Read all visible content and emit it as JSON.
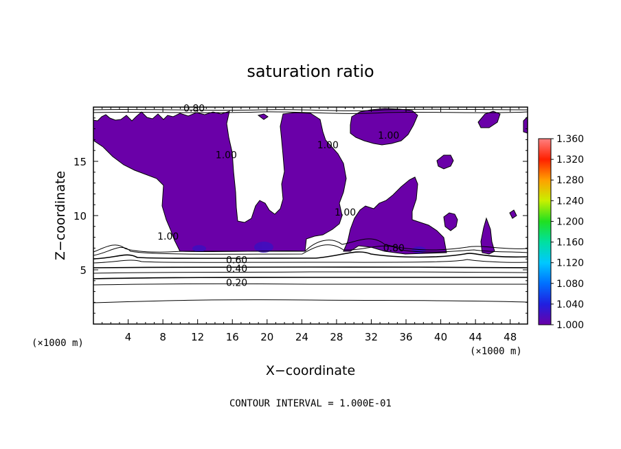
{
  "chart_data": {
    "type": "heatmap",
    "title": "saturation ratio",
    "xlabel": "X−coordinate",
    "ylabel": "Z−coordinate",
    "x_unit_left": "(×1000 m)",
    "x_unit_right": "(×1000 m)",
    "xlim": [
      0,
      50
    ],
    "ylim": [
      0,
      20
    ],
    "x_ticks": [
      4,
      8,
      12,
      16,
      20,
      24,
      28,
      32,
      36,
      40,
      44,
      48
    ],
    "y_ticks": [
      5,
      10,
      15
    ],
    "x_tick_labels": [
      "4",
      "8",
      "12",
      "16",
      "20",
      "24",
      "28",
      "32",
      "36",
      "40",
      "44",
      "48"
    ],
    "y_tick_labels": [
      "5",
      "10",
      "15"
    ],
    "note": "CONTOUR INTERVAL = 1.000E-01",
    "colorbar": {
      "min": 1.0,
      "max": 1.36,
      "tick_values": [
        1.0,
        1.04,
        1.08,
        1.12,
        1.16,
        1.2,
        1.24,
        1.28,
        1.32,
        1.36
      ],
      "labels": [
        "1.000",
        "1.040",
        "1.080",
        "1.120",
        "1.160",
        "1.200",
        "1.240",
        "1.280",
        "1.320",
        "1.360"
      ],
      "colors": [
        "#6a00a8",
        "#2020e0",
        "#0070ff",
        "#00c8ff",
        "#00e0a0",
        "#20e020",
        "#c8f000",
        "#ffa000",
        "#ff2000",
        "#ff8080"
      ]
    },
    "contour_labels": [
      {
        "text": "0.80",
        "x": 11.6,
        "y": 19.6
      },
      {
        "text": "1.00",
        "x": 15.3,
        "y": 15.3
      },
      {
        "text": "1.00",
        "x": 27.0,
        "y": 16.2
      },
      {
        "text": "1.00",
        "x": 34.0,
        "y": 17.1
      },
      {
        "text": "1.00",
        "x": 29.0,
        "y": 10.0
      },
      {
        "text": "1.00",
        "x": 8.6,
        "y": 7.8
      },
      {
        "text": "0.80",
        "x": 34.6,
        "y": 6.7
      },
      {
        "text": "0.60",
        "x": 16.5,
        "y": 5.6
      },
      {
        "text": "0.40",
        "x": 16.5,
        "y": 4.8
      },
      {
        "text": "0.20",
        "x": 16.5,
        "y": 3.5
      }
    ],
    "filled_region_color": "#6a00a8",
    "contour_color": "#000000"
  }
}
